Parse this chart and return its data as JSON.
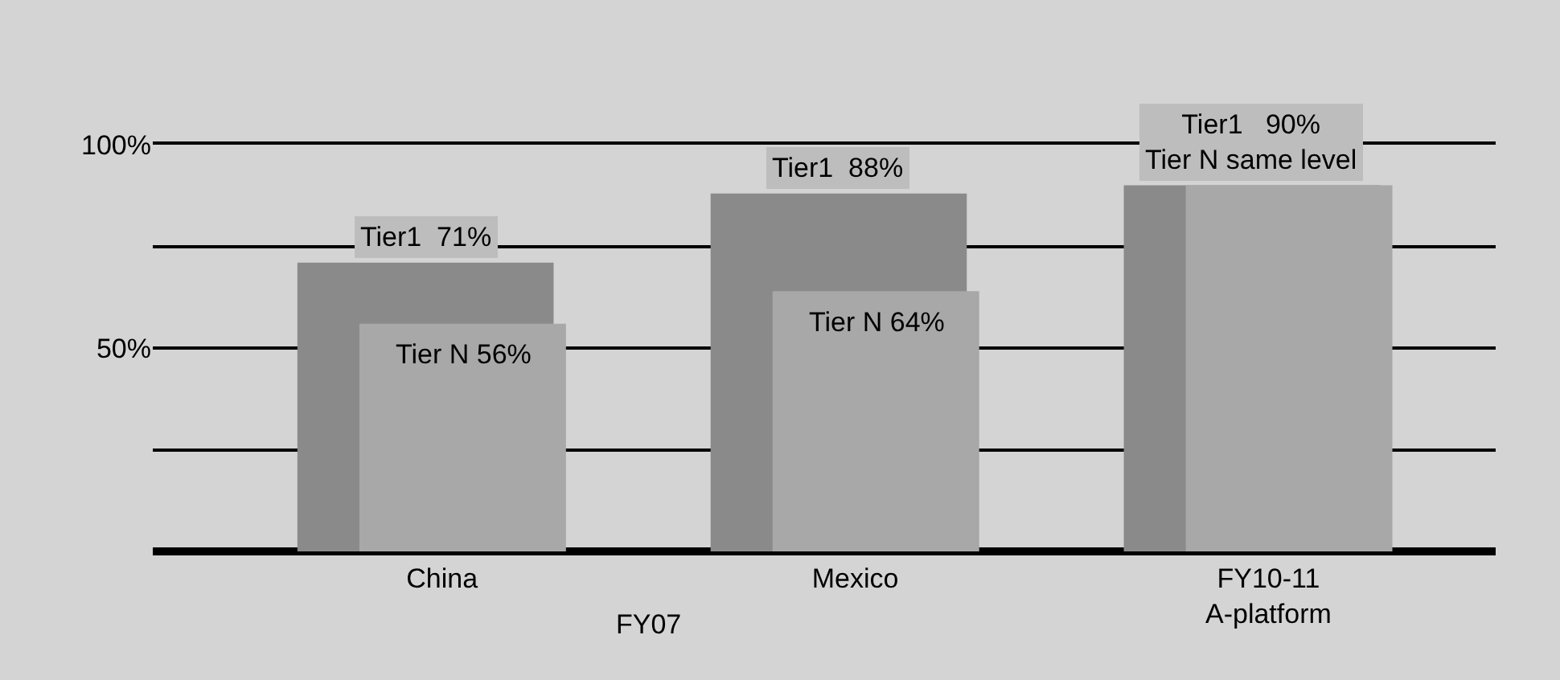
{
  "chart_data": {
    "type": "bar",
    "categories": [
      "China",
      "Mexico",
      "FY10-11\nA-platform"
    ],
    "series": [
      {
        "color": "#8a8a8a",
        "values": [
          71,
          88,
          90
        ],
        "value_labels": [
          "Tier1  71%",
          "Tier1  88%",
          "Tier1   90%\nTier N same level"
        ]
      },
      {
        "color": "#a8a8a8",
        "values": [
          56,
          64,
          90
        ],
        "value_labels": [
          "Tier N 56%",
          "Tier N 64%",
          null
        ]
      }
    ],
    "ylim": [
      0,
      100
    ],
    "yticks": [
      {
        "value": 25,
        "label": null
      },
      {
        "value": 50,
        "label": "50%"
      },
      {
        "value": 75,
        "label": null
      },
      {
        "value": 100,
        "label": "100%"
      }
    ],
    "grid": "y",
    "annotations": [
      "FY07"
    ]
  }
}
